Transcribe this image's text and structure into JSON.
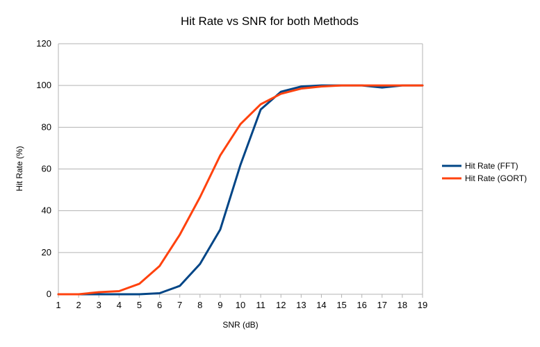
{
  "chart_data": {
    "type": "line",
    "title": "Hit Rate vs SNR for both Methods",
    "xlabel": "SNR (dB)",
    "ylabel": "Hit Rate (%)",
    "x": [
      1,
      2,
      3,
      4,
      5,
      6,
      7,
      8,
      9,
      10,
      11,
      12,
      13,
      14,
      15,
      16,
      17,
      18,
      19
    ],
    "ylim": [
      0,
      120
    ],
    "yticks": [
      0,
      20,
      40,
      60,
      80,
      100,
      120
    ],
    "grid": true,
    "legend_position": "right",
    "series": [
      {
        "name": "Hit Rate (FFT)",
        "color": "#004586",
        "values": [
          0,
          0,
          0,
          0,
          0,
          0.5,
          4,
          14.5,
          31,
          62,
          88.5,
          97,
          99.5,
          100,
          100,
          100,
          99,
          100,
          100
        ]
      },
      {
        "name": "Hit Rate (GORT)",
        "color": "#ff420e",
        "values": [
          0,
          0,
          1,
          1.5,
          5,
          13.5,
          28.5,
          46.5,
          66.5,
          81.5,
          91,
          96,
          98.5,
          99.5,
          100,
          100,
          100,
          100,
          100
        ]
      }
    ]
  }
}
